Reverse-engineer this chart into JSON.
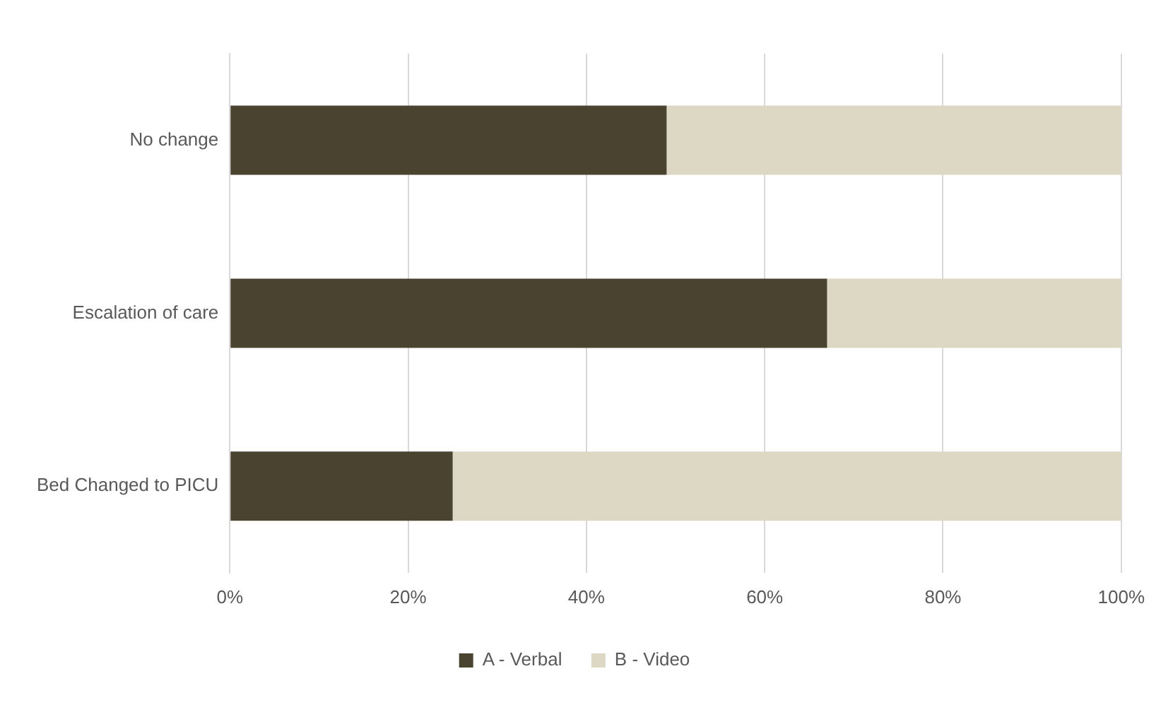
{
  "chart_data": {
    "type": "bar",
    "orientation": "horizontal",
    "stacked": true,
    "categories": [
      "No change",
      "Escalation of care",
      "Bed Changed to PICU"
    ],
    "series": [
      {
        "name": "A - Verbal",
        "color": "#4a4330",
        "values": [
          49,
          67,
          25
        ]
      },
      {
        "name": "B - Video",
        "color": "#ddd8c4",
        "values": [
          51,
          33,
          75
        ]
      }
    ],
    "xlim": [
      0,
      100
    ],
    "xticks": [
      {
        "value": 0,
        "label": "0%"
      },
      {
        "value": 20,
        "label": "20%"
      },
      {
        "value": 40,
        "label": "40%"
      },
      {
        "value": 60,
        "label": "60%"
      },
      {
        "value": 80,
        "label": "80%"
      },
      {
        "value": 100,
        "label": "100%"
      }
    ],
    "grid": "x",
    "legend": "bottom"
  }
}
